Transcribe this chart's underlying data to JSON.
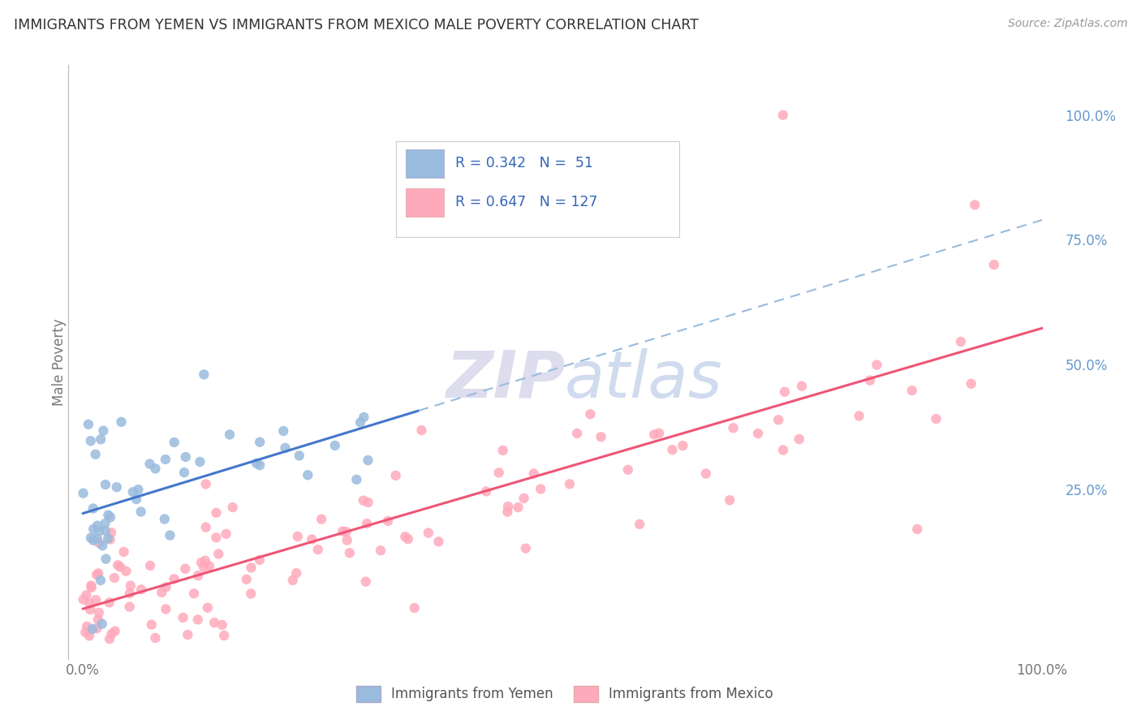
{
  "title": "IMMIGRANTS FROM YEMEN VS IMMIGRANTS FROM MEXICO MALE POVERTY CORRELATION CHART",
  "source": "Source: ZipAtlas.com",
  "ylabel": "Male Poverty",
  "R_blue": "0.342",
  "N_blue": "51",
  "R_pink": "0.647",
  "N_pink": "127",
  "blue_scatter_color": "#99BBDD",
  "pink_scatter_color": "#FFAABB",
  "blue_line_color": "#4477CC",
  "pink_line_color": "#EE5577",
  "blue_dash_color": "#99BBDD",
  "watermark_color": "#DDDDEE",
  "background_color": "#FFFFFF",
  "grid_color": "#DDDDDD",
  "right_axis_color": "#6699CC",
  "text_color": "#333333",
  "source_color": "#999999"
}
